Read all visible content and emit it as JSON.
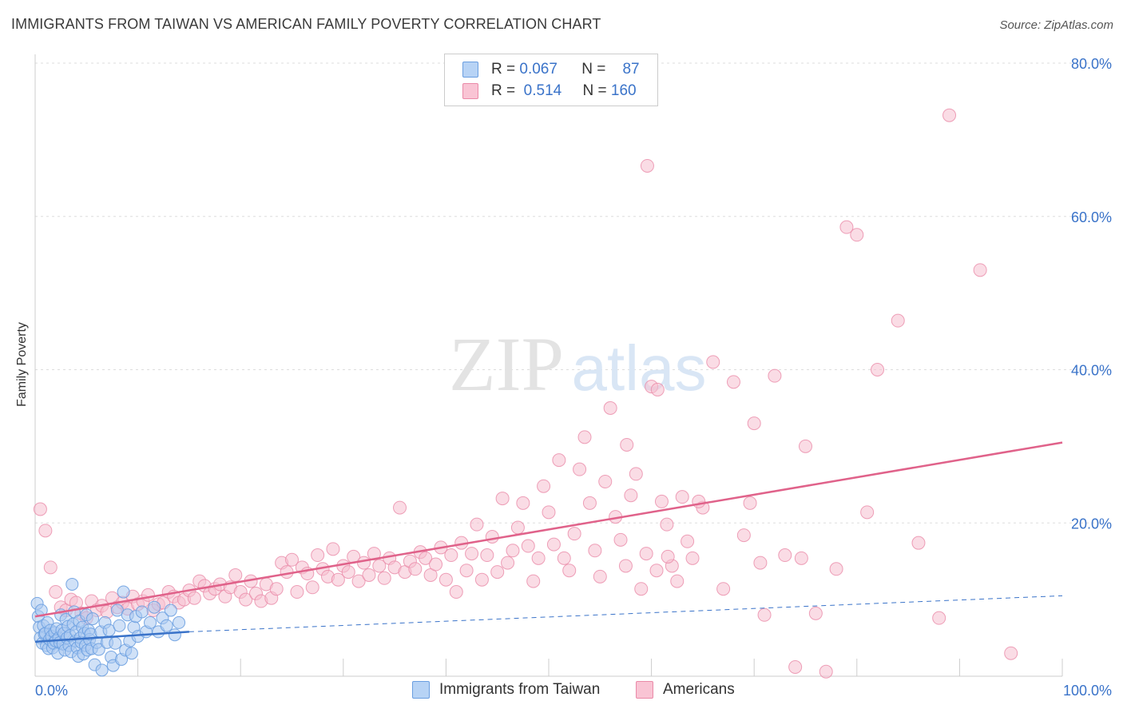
{
  "title": "IMMIGRANTS FROM TAIWAN VS AMERICAN FAMILY POVERTY CORRELATION CHART",
  "source": "Source: ZipAtlas.com",
  "watermark": {
    "zip": "ZIP",
    "atlas": "atlas"
  },
  "legend": {
    "rows": [
      {
        "r_label": "R =",
        "r_value": "0.067",
        "n_label": "N =",
        "n_value": "87",
        "color": "#6a9ee0"
      },
      {
        "r_label": "R =",
        "r_value": "0.514",
        "n_label": "N =",
        "n_value": "160",
        "color": "#ea8aa8"
      }
    ]
  },
  "bottom_legend": [
    {
      "label": "Immigrants from Taiwan",
      "color": "#6a9ee0"
    },
    {
      "label": "Americans",
      "color": "#ea8aa8"
    }
  ],
  "chart_data": {
    "type": "scatter",
    "title": "IMMIGRANTS FROM TAIWAN VS AMERICAN FAMILY POVERTY CORRELATION CHART",
    "xlabel": "",
    "ylabel": "Family Poverty",
    "xlim": [
      0,
      100
    ],
    "ylim": [
      0,
      80
    ],
    "x_tick_labels": [
      "0.0%",
      "100.0%"
    ],
    "y_ticks": [
      20,
      40,
      60,
      80
    ],
    "y_tick_labels": [
      "20.0%",
      "40.0%",
      "60.0%",
      "80.0%"
    ],
    "colors": {
      "blue": "#3a73c9",
      "pink": "#e0628a",
      "blue_fill": "#a9c8f0",
      "pink_fill": "#f6bfd0"
    },
    "series": [
      {
        "name": "Immigrants from Taiwan",
        "color": "#6a9ee0",
        "trend": {
          "x0": 0,
          "y0": 4.5,
          "x1": 15,
          "y1": 5.8,
          "dash_x1": 100,
          "dash_y1": 10.5
        },
        "points": [
          [
            0.2,
            9.5
          ],
          [
            0.3,
            7.8
          ],
          [
            0.4,
            6.4
          ],
          [
            0.5,
            5.0
          ],
          [
            0.6,
            8.6
          ],
          [
            0.7,
            4.3
          ],
          [
            0.8,
            6.6
          ],
          [
            0.9,
            5.5
          ],
          [
            1.0,
            5.6
          ],
          [
            1.1,
            4.0
          ],
          [
            1.2,
            7.0
          ],
          [
            1.3,
            3.6
          ],
          [
            1.4,
            4.8
          ],
          [
            1.5,
            6.0
          ],
          [
            1.6,
            5.2
          ],
          [
            1.7,
            3.7
          ],
          [
            1.8,
            4.3
          ],
          [
            1.9,
            5.7
          ],
          [
            2.0,
            4.6
          ],
          [
            2.1,
            6.2
          ],
          [
            2.2,
            3.0
          ],
          [
            2.3,
            5.0
          ],
          [
            2.4,
            4.4
          ],
          [
            2.5,
            8.0
          ],
          [
            2.6,
            6.0
          ],
          [
            2.7,
            4.2
          ],
          [
            2.8,
            5.6
          ],
          [
            2.9,
            3.4
          ],
          [
            3.0,
            7.4
          ],
          [
            3.1,
            5.0
          ],
          [
            3.2,
            6.5
          ],
          [
            3.3,
            4.0
          ],
          [
            3.4,
            5.3
          ],
          [
            3.5,
            3.2
          ],
          [
            3.6,
            12.0
          ],
          [
            3.7,
            6.8
          ],
          [
            3.8,
            8.4
          ],
          [
            3.9,
            4.6
          ],
          [
            4.0,
            5.8
          ],
          [
            4.1,
            3.7
          ],
          [
            4.2,
            2.6
          ],
          [
            4.3,
            7.2
          ],
          [
            4.4,
            5.0
          ],
          [
            4.5,
            4.4
          ],
          [
            4.6,
            6.4
          ],
          [
            4.7,
            2.9
          ],
          [
            4.8,
            5.6
          ],
          [
            4.9,
            4.0
          ],
          [
            5.0,
            8.0
          ],
          [
            5.1,
            3.4
          ],
          [
            5.2,
            6.0
          ],
          [
            5.3,
            4.8
          ],
          [
            5.4,
            5.5
          ],
          [
            5.5,
            3.6
          ],
          [
            5.6,
            7.5
          ],
          [
            5.8,
            1.5
          ],
          [
            6.0,
            4.4
          ],
          [
            6.2,
            3.5
          ],
          [
            6.4,
            5.8
          ],
          [
            6.5,
            0.8
          ],
          [
            6.8,
            7.0
          ],
          [
            7.0,
            4.4
          ],
          [
            7.2,
            6.0
          ],
          [
            7.4,
            2.5
          ],
          [
            7.6,
            1.4
          ],
          [
            7.8,
            4.3
          ],
          [
            8.0,
            8.6
          ],
          [
            8.2,
            6.6
          ],
          [
            8.4,
            2.2
          ],
          [
            8.6,
            11.0
          ],
          [
            8.8,
            3.4
          ],
          [
            9.0,
            8.0
          ],
          [
            9.2,
            4.6
          ],
          [
            9.4,
            3.0
          ],
          [
            9.6,
            6.4
          ],
          [
            9.8,
            7.8
          ],
          [
            10.0,
            5.2
          ],
          [
            10.4,
            8.4
          ],
          [
            10.8,
            5.8
          ],
          [
            11.2,
            7.0
          ],
          [
            11.6,
            9.0
          ],
          [
            12.0,
            5.8
          ],
          [
            12.4,
            7.6
          ],
          [
            12.8,
            6.6
          ],
          [
            13.2,
            8.6
          ],
          [
            13.6,
            5.4
          ],
          [
            14.0,
            7.0
          ]
        ]
      },
      {
        "name": "Americans",
        "color": "#ea8aa8",
        "trend": {
          "x0": 0,
          "y0": 7.8,
          "x1": 100,
          "y1": 30.5
        },
        "points": [
          [
            0.5,
            21.8
          ],
          [
            1.0,
            19.0
          ],
          [
            1.5,
            14.2
          ],
          [
            2.0,
            11.0
          ],
          [
            2.5,
            9.0
          ],
          [
            3.0,
            8.6
          ],
          [
            3.5,
            10.0
          ],
          [
            4.0,
            9.6
          ],
          [
            4.5,
            8.2
          ],
          [
            5.0,
            7.6
          ],
          [
            5.5,
            9.8
          ],
          [
            6.0,
            8.6
          ],
          [
            6.5,
            9.2
          ],
          [
            7.0,
            8.4
          ],
          [
            7.5,
            10.2
          ],
          [
            8.0,
            9.0
          ],
          [
            8.5,
            9.6
          ],
          [
            9.0,
            8.8
          ],
          [
            9.5,
            10.4
          ],
          [
            10.0,
            9.4
          ],
          [
            10.5,
            9.8
          ],
          [
            11.0,
            10.6
          ],
          [
            11.5,
            8.6
          ],
          [
            12.0,
            9.4
          ],
          [
            12.5,
            9.6
          ],
          [
            13.0,
            11.0
          ],
          [
            13.5,
            10.4
          ],
          [
            14.0,
            9.6
          ],
          [
            14.5,
            10.0
          ],
          [
            15.0,
            11.2
          ],
          [
            15.5,
            10.2
          ],
          [
            16.0,
            12.4
          ],
          [
            16.5,
            11.8
          ],
          [
            17.0,
            10.8
          ],
          [
            17.5,
            11.4
          ],
          [
            18.0,
            12.0
          ],
          [
            18.5,
            10.4
          ],
          [
            19.0,
            11.6
          ],
          [
            19.5,
            13.2
          ],
          [
            20.0,
            11.0
          ],
          [
            20.5,
            10.0
          ],
          [
            21.0,
            12.4
          ],
          [
            21.5,
            10.8
          ],
          [
            22.0,
            9.8
          ],
          [
            22.5,
            12.0
          ],
          [
            23.0,
            10.2
          ],
          [
            23.5,
            11.4
          ],
          [
            24.0,
            14.8
          ],
          [
            24.5,
            13.6
          ],
          [
            25.0,
            15.2
          ],
          [
            25.5,
            11.0
          ],
          [
            26.0,
            14.2
          ],
          [
            26.5,
            13.4
          ],
          [
            27.0,
            11.6
          ],
          [
            27.5,
            15.8
          ],
          [
            28.0,
            14.0
          ],
          [
            28.5,
            13.0
          ],
          [
            29.0,
            16.6
          ],
          [
            29.5,
            12.6
          ],
          [
            30.0,
            14.4
          ],
          [
            30.5,
            13.6
          ],
          [
            31.0,
            15.6
          ],
          [
            31.5,
            12.4
          ],
          [
            32.0,
            14.8
          ],
          [
            32.5,
            13.2
          ],
          [
            33.0,
            16.0
          ],
          [
            33.5,
            14.4
          ],
          [
            34.0,
            12.8
          ],
          [
            34.5,
            15.4
          ],
          [
            35.0,
            14.2
          ],
          [
            35.5,
            22.0
          ],
          [
            36.0,
            13.6
          ],
          [
            36.5,
            15.0
          ],
          [
            37.0,
            14.0
          ],
          [
            37.5,
            16.2
          ],
          [
            38.0,
            15.4
          ],
          [
            38.5,
            13.2
          ],
          [
            39.0,
            14.6
          ],
          [
            39.5,
            16.8
          ],
          [
            40.0,
            12.6
          ],
          [
            40.5,
            15.8
          ],
          [
            41.0,
            11.0
          ],
          [
            41.5,
            17.4
          ],
          [
            42.0,
            13.8
          ],
          [
            42.5,
            16.0
          ],
          [
            43.0,
            19.8
          ],
          [
            43.5,
            12.6
          ],
          [
            44.0,
            15.8
          ],
          [
            44.5,
            18.2
          ],
          [
            45.0,
            13.6
          ],
          [
            45.5,
            23.2
          ],
          [
            46.0,
            14.8
          ],
          [
            46.5,
            16.4
          ],
          [
            47.0,
            19.4
          ],
          [
            47.5,
            22.6
          ],
          [
            48.0,
            17.0
          ],
          [
            48.5,
            12.4
          ],
          [
            49.0,
            15.4
          ],
          [
            49.5,
            24.8
          ],
          [
            50.0,
            21.4
          ],
          [
            50.5,
            17.2
          ],
          [
            51.0,
            28.2
          ],
          [
            51.5,
            15.4
          ],
          [
            52.0,
            13.8
          ],
          [
            52.5,
            18.6
          ],
          [
            53.0,
            27.0
          ],
          [
            53.5,
            31.2
          ],
          [
            54.0,
            22.6
          ],
          [
            54.5,
            16.4
          ],
          [
            55.0,
            13.0
          ],
          [
            55.5,
            25.4
          ],
          [
            56.0,
            35.0
          ],
          [
            56.5,
            20.8
          ],
          [
            57.0,
            17.8
          ],
          [
            57.5,
            14.4
          ],
          [
            58.0,
            23.6
          ],
          [
            58.5,
            26.4
          ],
          [
            59.0,
            11.4
          ],
          [
            59.5,
            16.0
          ],
          [
            60.0,
            37.8
          ],
          [
            60.5,
            13.8
          ],
          [
            61.0,
            22.8
          ],
          [
            61.5,
            19.8
          ],
          [
            62.0,
            14.4
          ],
          [
            62.5,
            12.4
          ],
          [
            63.0,
            23.4
          ],
          [
            63.5,
            17.6
          ],
          [
            64.0,
            15.4
          ],
          [
            65.0,
            22.0
          ],
          [
            66.0,
            41.0
          ],
          [
            67.0,
            11.4
          ],
          [
            68.0,
            38.4
          ],
          [
            69.0,
            18.4
          ],
          [
            70.0,
            33.0
          ],
          [
            71.0,
            8.0
          ],
          [
            72.0,
            39.2
          ],
          [
            73.0,
            15.8
          ],
          [
            74.0,
            1.2
          ],
          [
            75.0,
            30.0
          ],
          [
            76.0,
            8.2
          ],
          [
            77.0,
            0.6
          ],
          [
            78.0,
            14.0
          ],
          [
            79.0,
            58.6
          ],
          [
            80.0,
            57.6
          ],
          [
            81.0,
            21.4
          ],
          [
            82.0,
            40.0
          ],
          [
            84.0,
            46.4
          ],
          [
            86.0,
            17.4
          ],
          [
            88.0,
            7.6
          ],
          [
            89.0,
            73.2
          ],
          [
            92.0,
            53.0
          ],
          [
            95.0,
            3.0
          ],
          [
            59.6,
            66.6
          ],
          [
            60.6,
            37.4
          ],
          [
            69.6,
            22.6
          ],
          [
            64.6,
            22.8
          ],
          [
            74.6,
            15.4
          ],
          [
            57.6,
            30.2
          ],
          [
            61.6,
            15.6
          ],
          [
            70.6,
            14.8
          ]
        ]
      }
    ]
  }
}
